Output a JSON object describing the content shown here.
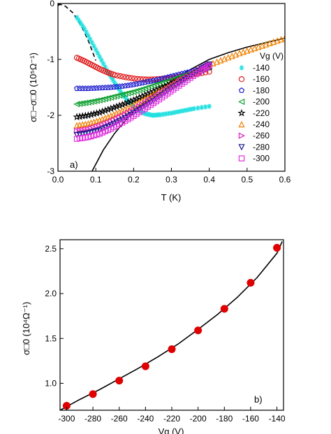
{
  "chart_data": [
    {
      "type": "scatter",
      "panel_label": "a)",
      "xlabel": "T (K)",
      "ylabel": "σ□−σ□0 (10⁵Ω⁻¹)",
      "xlim": [
        0.0,
        0.6
      ],
      "ylim": [
        -3,
        0
      ],
      "xticks": [
        "0.0",
        "0.1",
        "0.2",
        "0.3",
        "0.4",
        "0.5",
        "0.6"
      ],
      "yticks": [
        "0",
        "-1",
        "-2",
        "-3"
      ],
      "legend_title": "Vg (V)",
      "legend_position": "right",
      "series": [
        {
          "name": "-140",
          "marker": "asterisk",
          "color": "#22e0e0",
          "x": [
            0.05,
            0.07,
            0.09,
            0.11,
            0.13,
            0.15,
            0.17,
            0.19,
            0.21,
            0.23,
            0.25,
            0.27,
            0.3,
            0.33,
            0.36,
            0.4
          ],
          "y": [
            -0.25,
            -0.45,
            -0.7,
            -0.95,
            -1.2,
            -1.42,
            -1.62,
            -1.78,
            -1.9,
            -1.97,
            -2.0,
            -1.99,
            -1.96,
            -1.92,
            -1.88,
            -1.84
          ]
        },
        {
          "name": "-160",
          "marker": "circle",
          "color": "#e02020",
          "x": [
            0.05,
            0.07,
            0.09,
            0.11,
            0.13,
            0.15,
            0.18,
            0.21,
            0.24,
            0.27,
            0.3,
            0.33,
            0.36,
            0.4
          ],
          "y": [
            -0.97,
            -1.03,
            -1.1,
            -1.17,
            -1.23,
            -1.28,
            -1.32,
            -1.35,
            -1.36,
            -1.35,
            -1.33,
            -1.3,
            -1.27,
            -1.22
          ]
        },
        {
          "name": "-180",
          "marker": "pentagon",
          "color": "#2020d0",
          "x": [
            0.05,
            0.08,
            0.11,
            0.14,
            0.17,
            0.2,
            0.23,
            0.26,
            0.29,
            0.32,
            0.35,
            0.38,
            0.4
          ],
          "y": [
            -1.52,
            -1.52,
            -1.51,
            -1.5,
            -1.48,
            -1.45,
            -1.41,
            -1.37,
            -1.32,
            -1.27,
            -1.22,
            -1.17,
            -1.14
          ]
        },
        {
          "name": "-200",
          "marker": "triangle-left",
          "color": "#10a030",
          "x": [
            0.05,
            0.08,
            0.11,
            0.14,
            0.17,
            0.2,
            0.23,
            0.26,
            0.29,
            0.32,
            0.35,
            0.38,
            0.4
          ],
          "y": [
            -1.8,
            -1.77,
            -1.73,
            -1.68,
            -1.63,
            -1.58,
            -1.52,
            -1.45,
            -1.39,
            -1.32,
            -1.25,
            -1.18,
            -1.13
          ]
        },
        {
          "name": "-220",
          "marker": "star",
          "color": "#000000",
          "x": [
            0.05,
            0.08,
            0.11,
            0.14,
            0.17,
            0.2,
            0.23,
            0.26,
            0.29,
            0.32,
            0.35,
            0.38,
            0.4
          ],
          "y": [
            -2.03,
            -2.0,
            -1.95,
            -1.88,
            -1.81,
            -1.73,
            -1.64,
            -1.55,
            -1.46,
            -1.37,
            -1.28,
            -1.19,
            -1.13
          ]
        },
        {
          "name": "-240",
          "marker": "triangle-up",
          "color": "#f08000",
          "x": [
            0.05,
            0.08,
            0.11,
            0.14,
            0.17,
            0.2,
            0.23,
            0.26,
            0.29,
            0.32,
            0.35,
            0.38,
            0.4,
            0.44,
            0.48,
            0.52,
            0.56,
            0.6
          ],
          "y": [
            -2.18,
            -2.15,
            -2.09,
            -2.01,
            -1.92,
            -1.82,
            -1.71,
            -1.6,
            -1.49,
            -1.38,
            -1.27,
            -1.16,
            -1.1,
            -0.99,
            -0.89,
            -0.8,
            -0.71,
            -0.62
          ]
        },
        {
          "name": "-260",
          "marker": "triangle-right",
          "color": "#e020c0",
          "x": [
            0.05,
            0.08,
            0.11,
            0.14,
            0.17,
            0.2,
            0.23,
            0.26,
            0.29,
            0.32,
            0.35,
            0.38,
            0.4
          ],
          "y": [
            -2.28,
            -2.25,
            -2.19,
            -2.11,
            -2.01,
            -1.9,
            -1.78,
            -1.66,
            -1.53,
            -1.4,
            -1.28,
            -1.16,
            -1.09
          ]
        },
        {
          "name": "-280",
          "marker": "triangle-down",
          "color": "#1a1a8a",
          "x": [
            0.05,
            0.08,
            0.11,
            0.14,
            0.17,
            0.2,
            0.23,
            0.26,
            0.29,
            0.32,
            0.35,
            0.38,
            0.4
          ],
          "y": [
            -2.35,
            -2.32,
            -2.27,
            -2.18,
            -2.08,
            -1.96,
            -1.84,
            -1.71,
            -1.57,
            -1.44,
            -1.3,
            -1.17,
            -1.09
          ]
        },
        {
          "name": "-300",
          "marker": "square",
          "color": "#e030e0",
          "x": [
            0.05,
            0.08,
            0.11,
            0.14,
            0.17,
            0.2,
            0.23,
            0.26,
            0.29,
            0.32,
            0.35,
            0.38,
            0.4
          ],
          "y": [
            -2.42,
            -2.39,
            -2.33,
            -2.24,
            -2.13,
            -2.01,
            -1.88,
            -1.75,
            -1.61,
            -1.47,
            -1.33,
            -1.2,
            -1.11
          ]
        }
      ],
      "fit_curves": [
        {
          "style": "dashed",
          "color": "#000000",
          "x": [
            0.0,
            0.02,
            0.04,
            0.06,
            0.08,
            0.1
          ],
          "y": [
            0.0,
            -0.05,
            -0.17,
            -0.38,
            -0.66,
            -1.02
          ]
        },
        {
          "style": "solid",
          "color": "#000000",
          "x": [
            0.09,
            0.12,
            0.15,
            0.18,
            0.21,
            0.24,
            0.27,
            0.3,
            0.35,
            0.4,
            0.45,
            0.5,
            0.55,
            0.6
          ],
          "y": [
            -3.0,
            -2.62,
            -2.32,
            -2.08,
            -1.87,
            -1.69,
            -1.53,
            -1.39,
            -1.18,
            -1.0,
            -0.88,
            -0.78,
            -0.7,
            -0.62
          ]
        }
      ]
    },
    {
      "type": "scatter",
      "panel_label": "b)",
      "xlabel": "Vg (V)",
      "ylabel": "σ□0 (10⁴Ω⁻¹)",
      "xlim": [
        -305,
        -135
      ],
      "ylim": [
        0.7,
        2.6
      ],
      "xticks": [
        "-300",
        "-280",
        "-260",
        "-240",
        "-220",
        "-200",
        "-180",
        "-160",
        "-140"
      ],
      "yticks": [
        "1.0",
        "1.5",
        "2.0",
        "2.5"
      ],
      "series": [
        {
          "marker": "circle",
          "color": "#e00000",
          "x": [
            -300,
            -280,
            -260,
            -240,
            -220,
            -200,
            -180,
            -160,
            -140
          ],
          "y": [
            0.75,
            0.88,
            1.03,
            1.19,
            1.38,
            1.59,
            1.83,
            2.12,
            2.51
          ]
        }
      ],
      "fit_curve": {
        "style": "solid",
        "color": "#000000",
        "x": [
          -305,
          -290,
          -275,
          -260,
          -245,
          -230,
          -215,
          -200,
          -185,
          -170,
          -155,
          -140,
          -136
        ],
        "y": [
          0.7,
          0.82,
          0.93,
          1.05,
          1.17,
          1.3,
          1.44,
          1.6,
          1.77,
          1.96,
          2.18,
          2.45,
          2.58
        ]
      }
    }
  ]
}
